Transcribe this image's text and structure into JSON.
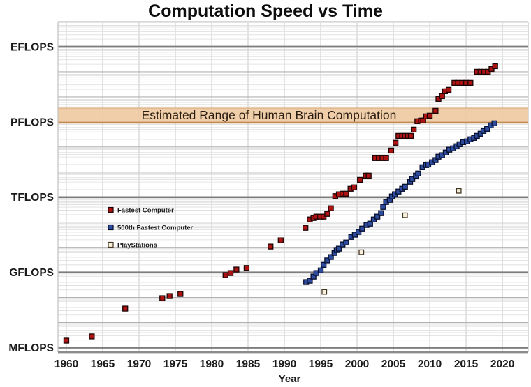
{
  "chart_data": {
    "type": "scatter",
    "title": "Computation Speed vs Time",
    "xlabel": "Year",
    "ylabel": "",
    "y_scale": "log",
    "y_unit": "MFLOPS",
    "x_range": [
      1958.85,
      2023.55
    ],
    "y_log10_range": [
      -0.18,
      13.0
    ],
    "x_ticks": [
      1960,
      1965,
      1970,
      1975,
      1980,
      1985,
      1990,
      1995,
      2000,
      2005,
      2010,
      2015,
      2020
    ],
    "y_major_ticks": [
      {
        "label": "MFLOPS",
        "mflops": 1
      },
      {
        "label": "GFLOPS",
        "mflops": 1000.0
      },
      {
        "label": "TFLOPS",
        "mflops": 1000000.0
      },
      {
        "label": "PFLOPS",
        "mflops": 1000000000.0
      },
      {
        "label": "EFLOPS",
        "mflops": 1000000000000.0
      }
    ],
    "band": {
      "label": "Estimated Range of Human Brain Computation",
      "from_mflops": 930000000.0,
      "to_mflops": 3550000000.0,
      "fill": "#eecaa2",
      "top_edge": "#ddb184",
      "bottom_edge": "#c08a52",
      "text_color": "#2a1c10"
    },
    "grid": {
      "vline_color": "#c9c9c9",
      "minor_color": "#dcdcdc",
      "decade_color": "#b2b2b2",
      "major_color": "#7d7d7d",
      "axis_color": "#8c8c8c"
    },
    "legend_position": "inside-left-middle",
    "series": [
      {
        "name": "Fastest Computer",
        "marker": "square",
        "size": 7,
        "fill": "#ad1313",
        "edge": "#1c0404",
        "points": [
          [
            1960.0,
            1.9
          ],
          [
            1963.5,
            2.8
          ],
          [
            1968.1,
            36
          ],
          [
            1973.2,
            94
          ],
          [
            1974.2,
            114
          ],
          [
            1975.7,
            138
          ],
          [
            1981.9,
            780
          ],
          [
            1982.6,
            940
          ],
          [
            1983.4,
            1300
          ],
          [
            1984.8,
            1500
          ],
          [
            1988.1,
            10700
          ],
          [
            1989.5,
            19000
          ],
          [
            1992.9,
            60000
          ],
          [
            1993.5,
            129000
          ],
          [
            1994.0,
            147000
          ],
          [
            1994.4,
            167000
          ],
          [
            1994.9,
            167000
          ],
          [
            1995.4,
            167000
          ],
          [
            1995.9,
            215000
          ],
          [
            1996.4,
            360000
          ],
          [
            1997.0,
            1100000.0
          ],
          [
            1997.5,
            1300000.0
          ],
          [
            1998.0,
            1370000.0
          ],
          [
            1998.5,
            1370000.0
          ],
          [
            1999.1,
            2150000.0
          ],
          [
            1999.6,
            2450000.0
          ],
          [
            2000.4,
            4900000.0
          ],
          [
            2001.2,
            7200000.0
          ],
          [
            2001.6,
            7200000.0
          ],
          [
            2002.5,
            36000000.0
          ],
          [
            2003.0,
            36000000.0
          ],
          [
            2003.5,
            36000000.0
          ],
          [
            2004.0,
            36000000.0
          ],
          [
            2004.7,
            72000000.0
          ],
          [
            2005.3,
            147000000.0
          ],
          [
            2005.7,
            277000000.0
          ],
          [
            2006.2,
            277000000.0
          ],
          [
            2006.6,
            277000000.0
          ],
          [
            2007.0,
            277000000.0
          ],
          [
            2007.4,
            277000000.0
          ],
          [
            2007.8,
            494000000.0
          ],
          [
            2008.3,
            1070000000.0
          ],
          [
            2008.8,
            1140000000.0
          ],
          [
            2009.1,
            1140000000.0
          ],
          [
            2009.5,
            1670000000.0
          ],
          [
            2010.0,
            1780000000.0
          ],
          [
            2010.8,
            2780000000.0
          ],
          [
            2011.2,
            8300000000.0
          ],
          [
            2011.7,
            10700000000.0
          ],
          [
            2012.1,
            16700000000.0
          ],
          [
            2012.6,
            19000000000.0
          ],
          [
            2013.4,
            36000000000.0
          ],
          [
            2013.9,
            36000000000.0
          ],
          [
            2014.5,
            36000000000.0
          ],
          [
            2015.0,
            36000000000.0
          ],
          [
            2015.6,
            36000000000.0
          ],
          [
            2016.5,
            100000000000.0
          ],
          [
            2017.0,
            100000000000.0
          ],
          [
            2017.5,
            100000000000.0
          ],
          [
            2018.0,
            100000000000.0
          ],
          [
            2018.5,
            129000000000.0
          ],
          [
            2019.0,
            167000000000.0
          ]
        ]
      },
      {
        "name": "500th Fastest Computer",
        "marker": "square",
        "size": 7,
        "fill": "#2e4c9e",
        "edge": "#060e2e",
        "points": [
          [
            1993.0,
            410
          ],
          [
            1993.5,
            465
          ],
          [
            1994.0,
            680
          ],
          [
            1994.4,
            940
          ],
          [
            1995.0,
            1200
          ],
          [
            1995.4,
            2000
          ],
          [
            1995.9,
            3000
          ],
          [
            1996.4,
            4100
          ],
          [
            1996.9,
            6000
          ],
          [
            1997.2,
            7800
          ],
          [
            1997.5,
            8800
          ],
          [
            1998.0,
            13000
          ],
          [
            1998.5,
            15600
          ],
          [
            1999.2,
            26000
          ],
          [
            1999.7,
            32000
          ],
          [
            2000.2,
            41000
          ],
          [
            2000.7,
            56000
          ],
          [
            2001.3,
            78000
          ],
          [
            2001.8,
            88000
          ],
          [
            2002.3,
            129000.0
          ],
          [
            2002.8,
            167000.0
          ],
          [
            2003.3,
            230000.0
          ],
          [
            2003.6,
            408000.0
          ],
          [
            2004.0,
            640000.0
          ],
          [
            2004.5,
            776000.0
          ],
          [
            2004.8,
            1070000.0
          ],
          [
            2005.2,
            1300000.0
          ],
          [
            2005.7,
            1670000.0
          ],
          [
            2006.2,
            2150000.0
          ],
          [
            2006.6,
            2600000.0
          ],
          [
            2007.3,
            4100000.0
          ],
          [
            2007.6,
            5300000.0
          ],
          [
            2008.1,
            7200000.0
          ],
          [
            2008.4,
            8800000.0
          ],
          [
            2009.0,
            15600000.0
          ],
          [
            2009.5,
            19000000.0
          ],
          [
            2009.8,
            20000000.0
          ],
          [
            2010.3,
            24600000.0
          ],
          [
            2010.8,
            30000000.0
          ],
          [
            2011.2,
            41000000.0
          ],
          [
            2011.7,
            47000000.0
          ],
          [
            2012.2,
            60000000.0
          ],
          [
            2012.7,
            78000000.0
          ],
          [
            2013.2,
            88000000.0
          ],
          [
            2013.7,
            107000000.0
          ],
          [
            2014.1,
            129000000.0
          ],
          [
            2014.6,
            156000000.0
          ],
          [
            2015.1,
            167000000.0
          ],
          [
            2015.6,
            203000000.0
          ],
          [
            2016.1,
            230000000.0
          ],
          [
            2016.5,
            277000000.0
          ],
          [
            2017.0,
            338000000.0
          ],
          [
            2017.4,
            437000000.0
          ],
          [
            2017.9,
            527000000.0
          ],
          [
            2018.4,
            724000000.0
          ],
          [
            2018.9,
            880000000.0
          ]
        ]
      },
      {
        "name": "PlayStations",
        "marker": "square",
        "size": 6.5,
        "fill": "#f7f1dd",
        "edge": "#453623",
        "points": [
          [
            1995.5,
            167
          ],
          [
            2000.6,
            6400
          ],
          [
            2006.6,
            190000.0
          ],
          [
            2014.0,
            1780000.0
          ]
        ]
      }
    ]
  },
  "text_colors": {
    "title": "#0d0d0d",
    "ticks": "#1a1a1a",
    "legend": "#1a1a1a"
  }
}
